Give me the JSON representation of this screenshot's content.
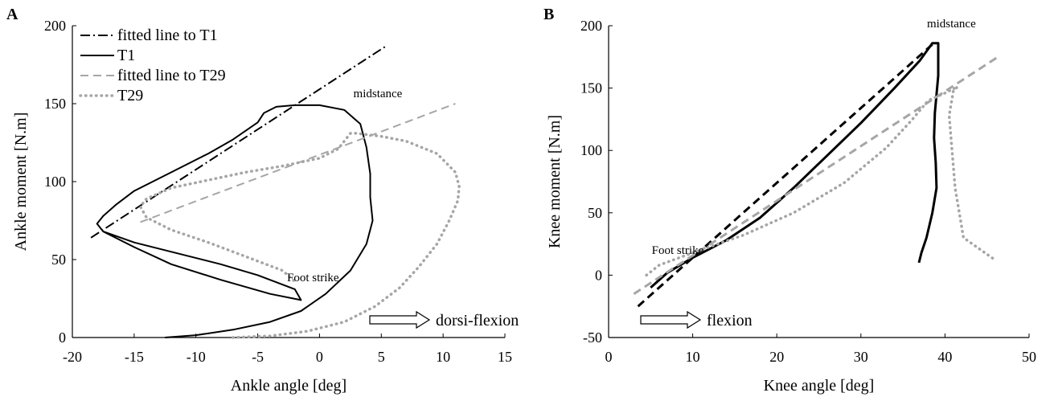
{
  "chart_data": [
    {
      "panel_label": "A",
      "type": "line",
      "xlabel": "Ankle angle [deg]",
      "ylabel": "Ankle moment [N.m]",
      "xlim": [
        -20,
        15
      ],
      "ylim": [
        0,
        200
      ],
      "xticks": [
        -20,
        -15,
        -10,
        -5,
        0,
        5,
        10,
        15
      ],
      "yticks": [
        0,
        50,
        100,
        150,
        200
      ],
      "legend_position": "top-left",
      "series": [
        {
          "name": "fitted line to T1",
          "style": "dashdot",
          "color": "#000000",
          "x": [
            -18.5,
            5.4
          ],
          "y": [
            64,
            187
          ]
        },
        {
          "name": "T1",
          "style": "solid",
          "color": "#000000",
          "x": [
            -12.5,
            -10,
            -7,
            -4,
            -1.5,
            0.5,
            2.5,
            3.8,
            4.3,
            4.1,
            4.1,
            3.8,
            3.3,
            2,
            0,
            -2,
            -3.5,
            -4.5,
            -5,
            -7,
            -9,
            -12,
            -15,
            -16.5,
            -17.5,
            -18,
            -17.5,
            -15,
            -12,
            -8,
            -5,
            -2,
            -1.5,
            -4,
            -8,
            -12,
            -15,
            -17.5
          ],
          "y": [
            0,
            1.5,
            5,
            10,
            17,
            28,
            43,
            60,
            75,
            90,
            105,
            122,
            137,
            146,
            149,
            149,
            148,
            144,
            138,
            127,
            118,
            106,
            94,
            85,
            78,
            73,
            68,
            61,
            55,
            47,
            40,
            31,
            24,
            28,
            37,
            47,
            58,
            68
          ]
        },
        {
          "name": "fitted line to T29",
          "style": "dashed",
          "color": "#a6a6a6",
          "x": [
            -14.5,
            11
          ],
          "y": [
            74,
            150
          ]
        },
        {
          "name": "T29",
          "style": "dotted",
          "color": "#a6a6a6",
          "x": [
            -7,
            -4,
            -1,
            2,
            4.5,
            6.5,
            8,
            9.5,
            10.5,
            11.2,
            11.3,
            11,
            9.5,
            7,
            5,
            3,
            2.5,
            2,
            1.5,
            0,
            -3,
            -6,
            -9,
            -12,
            -14,
            -14.5,
            -14,
            -12,
            -9,
            -6,
            -3,
            -2
          ],
          "y": [
            0,
            1,
            4,
            10,
            20,
            32,
            45,
            60,
            75,
            88,
            97,
            106,
            118,
            126,
            129,
            131,
            131,
            126,
            121,
            115,
            110,
            106,
            101,
            96,
            89,
            84,
            77,
            69,
            61,
            52,
            43,
            36
          ]
        }
      ],
      "annotations": [
        {
          "text": "midstance",
          "x": 3,
          "y": 150
        },
        {
          "text": "Foot strike",
          "x": -2.5,
          "y": 32
        },
        {
          "text": "dorsi-flexion",
          "arrow": true
        }
      ]
    },
    {
      "panel_label": "B",
      "type": "line",
      "xlabel": "Knee angle [deg]",
      "ylabel": "Knee moment [N.m]",
      "xlim": [
        0,
        50
      ],
      "ylim": [
        -50,
        200
      ],
      "xticks": [
        0,
        10,
        20,
        30,
        40,
        50
      ],
      "yticks": [
        -50,
        0,
        50,
        100,
        150,
        200
      ],
      "series": [
        {
          "name": "fitted line to T1",
          "style": "dashed",
          "color": "#000000",
          "x": [
            3.5,
            38.5
          ],
          "y": [
            -25,
            185
          ]
        },
        {
          "name": "T1",
          "style": "solid",
          "color": "#000000",
          "x": [
            5,
            7,
            10,
            14,
            18,
            22,
            26,
            30,
            34,
            37,
            38.5,
            39.2,
            39.2,
            38.8,
            38.7,
            38.9,
            39,
            38.5,
            37.8,
            37.2,
            36.9
          ],
          "y": [
            -10,
            2,
            14,
            28,
            46,
            70,
            96,
            122,
            150,
            172,
            186,
            186,
            160,
            130,
            110,
            90,
            70,
            50,
            30,
            18,
            10
          ]
        },
        {
          "name": "fitted line to T29",
          "style": "dashed",
          "color": "#a6a6a6",
          "x": [
            3,
            46.3
          ],
          "y": [
            -15,
            175
          ]
        },
        {
          "name": "T29",
          "style": "dotted",
          "color": "#a6a6a6",
          "x": [
            4.5,
            6,
            10,
            16,
            22,
            28,
            33,
            36,
            38,
            40,
            41.5,
            41,
            40.5,
            41.2,
            42.2,
            46
          ],
          "y": [
            0,
            8,
            18,
            32,
            50,
            74,
            102,
            124,
            140,
            146,
            151,
            148,
            128,
            70,
            30,
            12
          ]
        }
      ],
      "annotations": [
        {
          "text": "midstance",
          "x": 39,
          "y": 196
        },
        {
          "text": "Foot strike",
          "x": 8,
          "y": 13
        },
        {
          "text": "flexion",
          "arrow": true
        }
      ]
    }
  ]
}
